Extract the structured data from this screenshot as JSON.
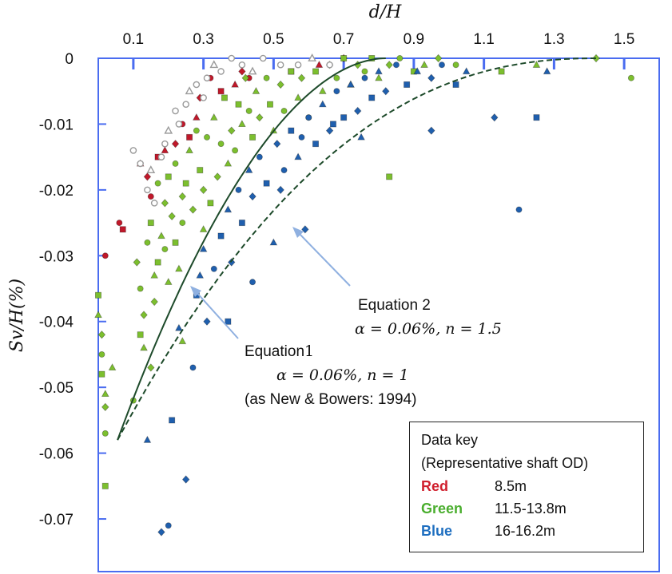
{
  "chart_data": {
    "type": "scatter",
    "xlabel": "d/H",
    "ylabel": "Sv/H(%)",
    "xlim": [
      0,
      1.6
    ],
    "ylim": [
      -0.078,
      0
    ],
    "x_ticks": [
      "0.1",
      "0.3",
      "0.5",
      "0.7",
      "0.9",
      "1.1",
      "1.3",
      "1.5"
    ],
    "x_tick_values": [
      0.1,
      0.3,
      0.5,
      0.7,
      0.9,
      1.1,
      1.3,
      1.5
    ],
    "y_ticks": [
      "0",
      "-0.01",
      "-0.02",
      "-0.03",
      "-0.04",
      "-0.05",
      "-0.06",
      "-0.07"
    ],
    "y_tick_values": [
      0,
      -0.01,
      -0.02,
      -0.03,
      -0.04,
      -0.05,
      -0.06,
      -0.07
    ],
    "x_axis_position": "top",
    "grid": false,
    "colors": {
      "red": "#c0182a",
      "green": "#7cbf2e",
      "blue": "#1f5fae",
      "hollow": "#9a9a9a",
      "axis": "#4a6cf0",
      "curve": "#1d4a2a",
      "arrow": "#8fb0e0"
    },
    "series": [
      {
        "name": "Red",
        "color": "#c0182a",
        "points": [
          [
            0.06,
            -0.025
          ],
          [
            0.07,
            -0.026
          ],
          [
            0.12,
            -0.016
          ],
          [
            0.14,
            -0.018
          ],
          [
            0.15,
            -0.021
          ],
          [
            0.17,
            -0.015
          ],
          [
            0.19,
            -0.014
          ],
          [
            0.22,
            -0.013
          ],
          [
            0.24,
            -0.01
          ],
          [
            0.26,
            -0.012
          ],
          [
            0.28,
            -0.009
          ],
          [
            0.29,
            -0.006
          ],
          [
            0.32,
            -0.003
          ],
          [
            0.35,
            -0.005
          ],
          [
            0.39,
            -0.004
          ],
          [
            0.41,
            -0.002
          ],
          [
            0.43,
            -0.003
          ],
          [
            0.55,
            -0.002
          ],
          [
            0.63,
            -0.001
          ],
          [
            0.7,
            0.0
          ],
          [
            0.02,
            -0.03
          ]
        ]
      },
      {
        "name": "Green",
        "color": "#7cbf2e",
        "points": [
          [
            0.0,
            -0.036
          ],
          [
            0.0,
            -0.039
          ],
          [
            0.01,
            -0.042
          ],
          [
            0.01,
            -0.045
          ],
          [
            0.01,
            -0.048
          ],
          [
            0.02,
            -0.051
          ],
          [
            0.02,
            -0.053
          ],
          [
            0.02,
            -0.057
          ],
          [
            0.02,
            -0.065
          ],
          [
            0.04,
            -0.047
          ],
          [
            0.11,
            -0.031
          ],
          [
            0.12,
            -0.035
          ],
          [
            0.12,
            -0.042
          ],
          [
            0.13,
            -0.044
          ],
          [
            0.13,
            -0.039
          ],
          [
            0.14,
            -0.028
          ],
          [
            0.15,
            -0.025
          ],
          [
            0.16,
            -0.033
          ],
          [
            0.16,
            -0.037
          ],
          [
            0.17,
            -0.019
          ],
          [
            0.17,
            -0.031
          ],
          [
            0.18,
            -0.027
          ],
          [
            0.19,
            -0.022
          ],
          [
            0.19,
            -0.029
          ],
          [
            0.2,
            -0.018
          ],
          [
            0.2,
            -0.034
          ],
          [
            0.21,
            -0.024
          ],
          [
            0.22,
            -0.016
          ],
          [
            0.22,
            -0.028
          ],
          [
            0.23,
            -0.032
          ],
          [
            0.24,
            -0.021
          ],
          [
            0.24,
            -0.025
          ],
          [
            0.25,
            -0.019
          ],
          [
            0.26,
            -0.014
          ],
          [
            0.27,
            -0.023
          ],
          [
            0.28,
            -0.011
          ],
          [
            0.29,
            -0.017
          ],
          [
            0.3,
            -0.026
          ],
          [
            0.3,
            -0.02
          ],
          [
            0.31,
            -0.012
          ],
          [
            0.32,
            -0.022
          ],
          [
            0.33,
            -0.009
          ],
          [
            0.34,
            -0.018
          ],
          [
            0.35,
            -0.013
          ],
          [
            0.36,
            -0.006
          ],
          [
            0.37,
            -0.016
          ],
          [
            0.38,
            -0.011
          ],
          [
            0.39,
            -0.014
          ],
          [
            0.4,
            -0.007
          ],
          [
            0.41,
            -0.01
          ],
          [
            0.42,
            -0.003
          ],
          [
            0.43,
            -0.008
          ],
          [
            0.44,
            -0.012
          ],
          [
            0.45,
            -0.005
          ],
          [
            0.46,
            -0.009
          ],
          [
            0.48,
            -0.003
          ],
          [
            0.49,
            -0.007
          ],
          [
            0.5,
            -0.011
          ],
          [
            0.52,
            -0.004
          ],
          [
            0.53,
            -0.008
          ],
          [
            0.55,
            -0.002
          ],
          [
            0.57,
            -0.006
          ],
          [
            0.58,
            -0.003
          ],
          [
            0.6,
            -0.009
          ],
          [
            0.62,
            -0.002
          ],
          [
            0.64,
            -0.005
          ],
          [
            0.66,
            -0.001
          ],
          [
            0.68,
            -0.003
          ],
          [
            0.7,
            0.0
          ],
          [
            0.72,
            -0.004
          ],
          [
            0.74,
            -0.001
          ],
          [
            0.76,
            -0.002
          ],
          [
            0.78,
            0.0
          ],
          [
            0.8,
            -0.003
          ],
          [
            0.83,
            -0.001
          ],
          [
            0.86,
            0.0
          ],
          [
            0.9,
            -0.002
          ],
          [
            0.93,
            -0.001
          ],
          [
            0.97,
            0.0
          ],
          [
            1.02,
            -0.001
          ],
          [
            1.15,
            -0.002
          ],
          [
            1.25,
            -0.001
          ],
          [
            1.42,
            0.0
          ],
          [
            1.52,
            -0.003
          ],
          [
            0.83,
            -0.018
          ],
          [
            0.24,
            -0.043
          ],
          [
            0.15,
            -0.047
          ],
          [
            0.1,
            -0.052
          ]
        ]
      },
      {
        "name": "Blue",
        "color": "#1f5fae",
        "points": [
          [
            0.14,
            -0.058
          ],
          [
            0.18,
            -0.072
          ],
          [
            0.2,
            -0.071
          ],
          [
            0.21,
            -0.055
          ],
          [
            0.23,
            -0.041
          ],
          [
            0.25,
            -0.064
          ],
          [
            0.27,
            -0.047
          ],
          [
            0.28,
            -0.036
          ],
          [
            0.3,
            -0.029
          ],
          [
            0.31,
            -0.04
          ],
          [
            0.33,
            -0.032
          ],
          [
            0.35,
            -0.027
          ],
          [
            0.37,
            -0.023
          ],
          [
            0.38,
            -0.031
          ],
          [
            0.4,
            -0.02
          ],
          [
            0.41,
            -0.025
          ],
          [
            0.43,
            -0.017
          ],
          [
            0.44,
            -0.021
          ],
          [
            0.46,
            -0.015
          ],
          [
            0.48,
            -0.019
          ],
          [
            0.5,
            -0.028
          ],
          [
            0.51,
            -0.013
          ],
          [
            0.53,
            -0.017
          ],
          [
            0.55,
            -0.011
          ],
          [
            0.57,
            -0.015
          ],
          [
            0.59,
            -0.026
          ],
          [
            0.6,
            -0.009
          ],
          [
            0.62,
            -0.013
          ],
          [
            0.64,
            -0.007
          ],
          [
            0.66,
            -0.011
          ],
          [
            0.68,
            -0.005
          ],
          [
            0.7,
            -0.009
          ],
          [
            0.72,
            -0.004
          ],
          [
            0.74,
            -0.008
          ],
          [
            0.76,
            -0.003
          ],
          [
            0.78,
            -0.006
          ],
          [
            0.8,
            -0.002
          ],
          [
            0.82,
            -0.005
          ],
          [
            0.85,
            -0.001
          ],
          [
            0.88,
            -0.004
          ],
          [
            0.91,
            -0.002
          ],
          [
            0.95,
            -0.003
          ],
          [
            0.98,
            -0.001
          ],
          [
            1.02,
            -0.004
          ],
          [
            1.05,
            -0.002
          ],
          [
            1.13,
            -0.009
          ],
          [
            1.2,
            -0.023
          ],
          [
            1.25,
            -0.009
          ],
          [
            1.28,
            -0.002
          ],
          [
            0.52,
            -0.02
          ],
          [
            0.58,
            -0.012
          ],
          [
            0.67,
            -0.01
          ],
          [
            0.75,
            -0.012
          ],
          [
            0.95,
            -0.011
          ],
          [
            0.44,
            -0.034
          ],
          [
            0.37,
            -0.04
          ],
          [
            0.29,
            -0.033
          ]
        ]
      },
      {
        "name": "",
        "color": "#9a9a9a",
        "points": [
          [
            0.1,
            -0.014
          ],
          [
            0.12,
            -0.016
          ],
          [
            0.14,
            -0.02
          ],
          [
            0.15,
            -0.017
          ],
          [
            0.16,
            -0.022
          ],
          [
            0.18,
            -0.015
          ],
          [
            0.19,
            -0.013
          ],
          [
            0.2,
            -0.011
          ],
          [
            0.22,
            -0.008
          ],
          [
            0.23,
            -0.01
          ],
          [
            0.25,
            -0.007
          ],
          [
            0.26,
            -0.005
          ],
          [
            0.28,
            -0.004
          ],
          [
            0.3,
            -0.006
          ],
          [
            0.31,
            -0.003
          ],
          [
            0.33,
            -0.001
          ],
          [
            0.35,
            -0.002
          ],
          [
            0.38,
            0.0
          ],
          [
            0.41,
            -0.001
          ],
          [
            0.44,
            -0.002
          ],
          [
            0.47,
            0.0
          ],
          [
            0.52,
            -0.001
          ],
          [
            0.57,
            -0.001
          ],
          [
            0.61,
            0.0
          ],
          [
            0.66,
            -0.001
          ]
        ]
      }
    ],
    "curves": [
      {
        "name": "Equation 1",
        "style": "solid",
        "alpha": 0.06,
        "n": 1,
        "x0": 0.055,
        "x1": 0.82
      },
      {
        "name": "Equation 2",
        "style": "dashed",
        "alpha": 0.06,
        "n": 1.5,
        "x0": 0.055,
        "x1": 1.43
      }
    ],
    "annotations": [
      {
        "id": "eq2",
        "line1": "Equation 2",
        "line2": "α = 0.06%, n = 1.5"
      },
      {
        "id": "eq1",
        "line1": "Equation",
        "line1_num": "1",
        "line2": "α = 0.06%, n = 1",
        "line3": "(as New & Bowers: 1994)"
      }
    ],
    "legend": {
      "title": "Data key",
      "subtitle": "(Representative shaft OD)",
      "entries": [
        {
          "name": "Red",
          "value": "8.5m",
          "color": "#d0202e"
        },
        {
          "name": "Green",
          "value": "11.5-13.8m",
          "color": "#4aae2e"
        },
        {
          "name": "Blue",
          "value": "16-16.2m",
          "color": "#1f6fc0"
        }
      ],
      "placement": "bottom-right"
    }
  }
}
